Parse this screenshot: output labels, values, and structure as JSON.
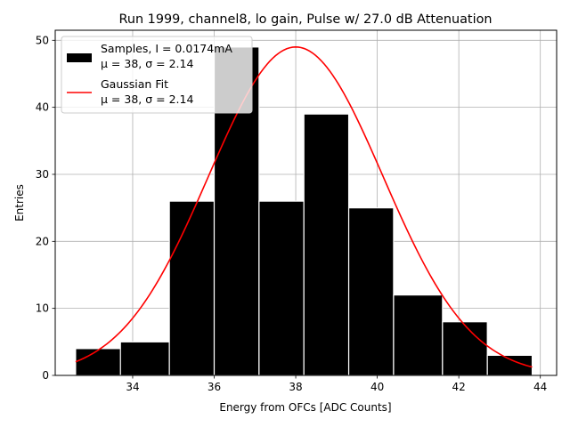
{
  "chart_data": {
    "type": "bar",
    "title": "Run 1999, channel8, lo gain, Pulse w/ 27.0 dB Attenuation",
    "xlabel": "Energy from OFCs [ADC Counts]",
    "ylabel": "Entries",
    "xlim": [
      32.1,
      44.4
    ],
    "ylim": [
      0,
      51.5
    ],
    "xticks": [
      34,
      36,
      38,
      40,
      42,
      44
    ],
    "yticks": [
      0,
      10,
      20,
      30,
      40,
      50
    ],
    "grid": true,
    "legend_position": "top-left",
    "bars": [
      {
        "x0": 32.6,
        "x1": 33.8,
        "value": 4
      },
      {
        "x0": 33.7,
        "x1": 34.9,
        "value": 5
      },
      {
        "x0": 34.9,
        "x1": 36.0,
        "value": 26
      },
      {
        "x0": 36.0,
        "x1": 37.1,
        "value": 49
      },
      {
        "x0": 37.1,
        "x1": 38.2,
        "value": 26
      },
      {
        "x0": 38.2,
        "x1": 39.3,
        "value": 39
      },
      {
        "x0": 39.3,
        "x1": 40.4,
        "value": 25
      },
      {
        "x0": 40.4,
        "x1": 41.6,
        "value": 12
      },
      {
        "x0": 41.6,
        "x1": 42.7,
        "value": 8
      },
      {
        "x0": 42.7,
        "x1": 43.8,
        "value": 3
      }
    ],
    "series": [
      {
        "name": "Samples",
        "kind": "histogram",
        "color": "#000000",
        "legend_line1": "Samples, I = 0.0174mA",
        "legend_line2": "μ = 38, σ = 2.14"
      },
      {
        "name": "Gaussian Fit",
        "kind": "line",
        "color": "#ff0000",
        "legend_line1": "Gaussian Fit",
        "legend_line2": "μ = 38, σ = 2.14",
        "mu": 38,
        "sigma": 2.14,
        "amplitude": 49,
        "x_range": [
          32.6,
          43.8
        ]
      }
    ]
  }
}
